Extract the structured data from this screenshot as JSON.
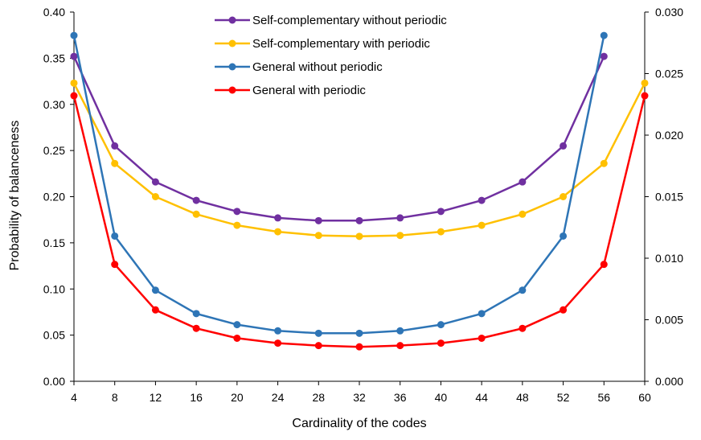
{
  "chart_data": {
    "type": "line",
    "title": "",
    "xlabel": "Cardinality of the codes",
    "ylabel": "Probability of balanceness",
    "x": [
      4,
      8,
      12,
      16,
      20,
      24,
      28,
      32,
      36,
      40,
      44,
      48,
      52,
      56
    ],
    "x_ticks": [
      4,
      8,
      12,
      16,
      20,
      24,
      28,
      32,
      36,
      40,
      44,
      48,
      52,
      56,
      60
    ],
    "xlim": [
      4,
      60
    ],
    "ylim": [
      0,
      0.4
    ],
    "y_ticks": [
      "0.00",
      "0.05",
      "0.10",
      "0.15",
      "0.20",
      "0.25",
      "0.30",
      "0.35",
      "0.40"
    ],
    "y2lim": [
      0,
      0.03
    ],
    "y2_ticks": [
      "0.000",
      "0.005",
      "0.010",
      "0.015",
      "0.020",
      "0.025",
      "0.030"
    ],
    "grid": false,
    "legend_position": "top-center",
    "series": [
      {
        "name": "Self-complementary without periodic",
        "color": "#7030A0",
        "axis": "left",
        "x": [
          4,
          8,
          12,
          16,
          20,
          24,
          28,
          32,
          36,
          40,
          44,
          48,
          52,
          56
        ],
        "values": [
          0.352,
          0.255,
          0.216,
          0.196,
          0.184,
          0.177,
          0.174,
          0.174,
          0.177,
          0.184,
          0.196,
          0.216,
          0.255,
          0.352
        ]
      },
      {
        "name": "Self-complementary with periodic",
        "color": "#FFC000",
        "axis": "left",
        "x": [
          4,
          8,
          12,
          16,
          20,
          24,
          28,
          32,
          36,
          40,
          44,
          48,
          52,
          56,
          60
        ],
        "values": [
          0.323,
          0.236,
          0.2,
          0.181,
          0.169,
          0.162,
          0.158,
          0.157,
          0.158,
          0.162,
          0.169,
          0.181,
          0.2,
          0.236,
          0.323
        ]
      },
      {
        "name": "General without periodic",
        "color": "#2E75B6",
        "axis": "right",
        "x": [
          4,
          8,
          12,
          16,
          20,
          24,
          28,
          32,
          36,
          40,
          44,
          48,
          52,
          56
        ],
        "values": [
          0.0281,
          0.0118,
          0.0074,
          0.0055,
          0.0046,
          0.0041,
          0.0039,
          0.0039,
          0.0041,
          0.0046,
          0.0055,
          0.0074,
          0.0118,
          0.0281
        ]
      },
      {
        "name": "General with periodic",
        "color": "#FF0000",
        "axis": "right",
        "x": [
          4,
          8,
          12,
          16,
          20,
          24,
          28,
          32,
          36,
          40,
          44,
          48,
          52,
          56,
          60
        ],
        "values": [
          0.0232,
          0.0095,
          0.0058,
          0.0043,
          0.0035,
          0.0031,
          0.0029,
          0.0028,
          0.0029,
          0.0031,
          0.0035,
          0.0043,
          0.0058,
          0.0095,
          0.0232
        ]
      }
    ]
  }
}
